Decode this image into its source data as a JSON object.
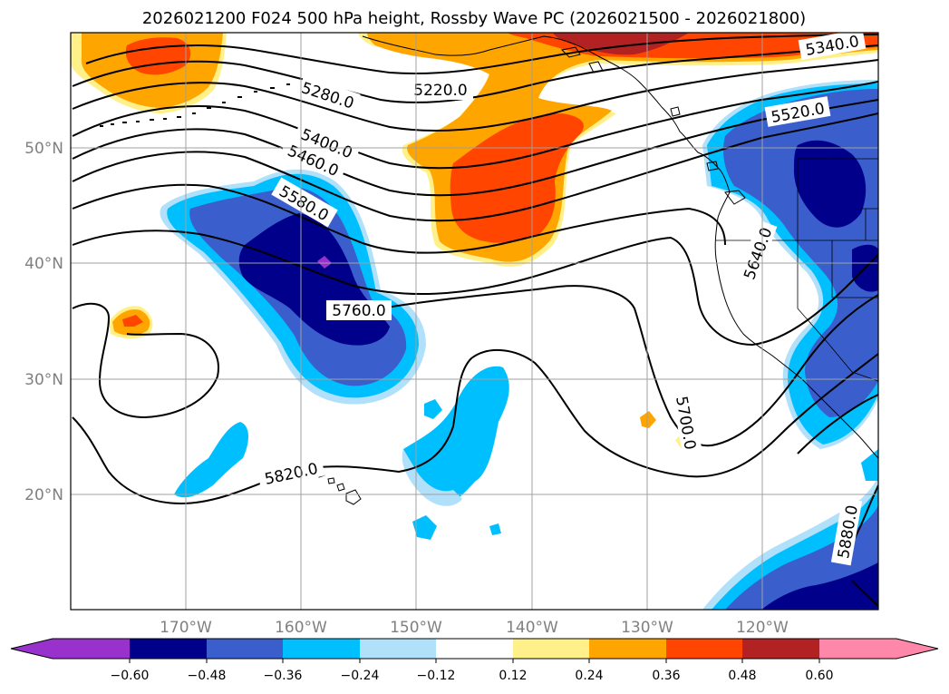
{
  "title": "2026021200 F024 500 hPa height, Rossby Wave PC (2026021500 - 2026021800)",
  "lat_labels": [
    "50°N",
    "40°N",
    "30°N",
    "20°N"
  ],
  "lon_labels": [
    "170°W",
    "160°W",
    "150°W",
    "140°W",
    "130°W",
    "120°W"
  ],
  "contour_labels": [
    "5340.0",
    "5220.0",
    "5280.0",
    "5520.0",
    "5400.0",
    "5460.0",
    "5580.0",
    "5640.0",
    "5760.0",
    "5700.0",
    "5820.0",
    "5880.0"
  ],
  "colorbar": {
    "ticks": [
      "−0.60",
      "−0.48",
      "−0.36",
      "−0.24",
      "−0.12",
      "0.12",
      "0.24",
      "0.36",
      "0.48",
      "0.60"
    ],
    "colors": [
      "#9932cc",
      "#00008b",
      "#3a5fcd",
      "#00bfff",
      "#b0e0fa",
      "#ffffff",
      "#fff08a",
      "#ffa500",
      "#ff4500",
      "#b22222",
      "#ff88aa"
    ]
  },
  "fill_colors": {
    "neg_strong": "#00008b",
    "neg_mid": "#3a5fcd",
    "neg_weak": "#00bfff",
    "neg_faint": "#b0e0fa",
    "pos_faint": "#fff08a",
    "pos_weak": "#ffa500",
    "pos_mid": "#ff4500",
    "pos_strong": "#b22222",
    "extreme_neg": "#9932cc"
  }
}
